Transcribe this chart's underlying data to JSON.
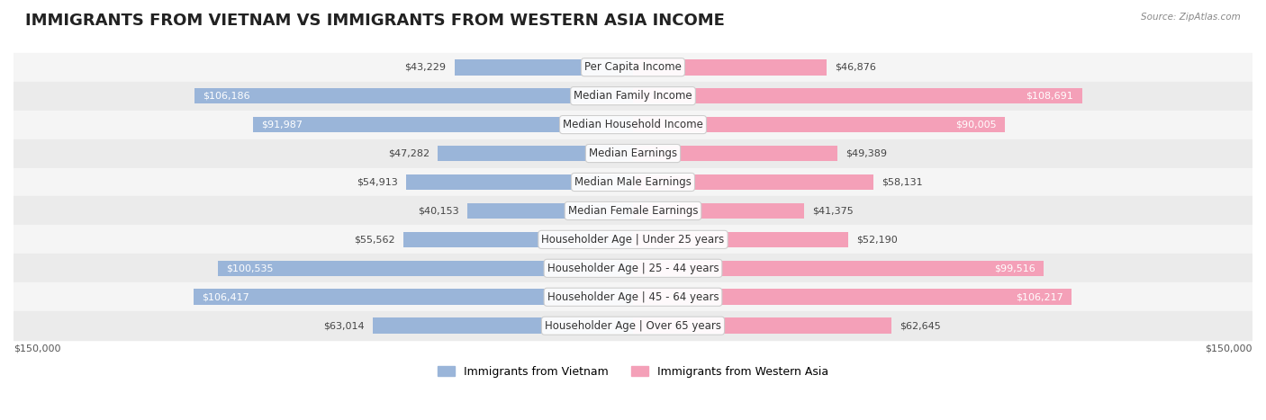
{
  "title": "IMMIGRANTS FROM VIETNAM VS IMMIGRANTS FROM WESTERN ASIA INCOME",
  "source": "Source: ZipAtlas.com",
  "categories": [
    "Per Capita Income",
    "Median Family Income",
    "Median Household Income",
    "Median Earnings",
    "Median Male Earnings",
    "Median Female Earnings",
    "Householder Age | Under 25 years",
    "Householder Age | 25 - 44 years",
    "Householder Age | 45 - 64 years",
    "Householder Age | Over 65 years"
  ],
  "vietnam_values": [
    43229,
    106186,
    91987,
    47282,
    54913,
    40153,
    55562,
    100535,
    106417,
    63014
  ],
  "western_asia_values": [
    46876,
    108691,
    90005,
    49389,
    58131,
    41375,
    52190,
    99516,
    106217,
    62645
  ],
  "max_value": 150000,
  "vietnam_color": "#9ab5d9",
  "vietnam_color_dark": "#6a9fd0",
  "western_asia_color": "#f4a0b8",
  "western_asia_color_dark": "#e8799a",
  "vietnam_label": "Immigrants from Vietnam",
  "western_asia_label": "Immigrants from Western Asia",
  "background_color": "#ffffff",
  "row_bg_color": "#f0f0f0",
  "ylabel_left": "$150,000",
  "ylabel_right": "$150,000",
  "title_fontsize": 13,
  "label_fontsize": 8.5,
  "value_fontsize": 8,
  "legend_fontsize": 9
}
